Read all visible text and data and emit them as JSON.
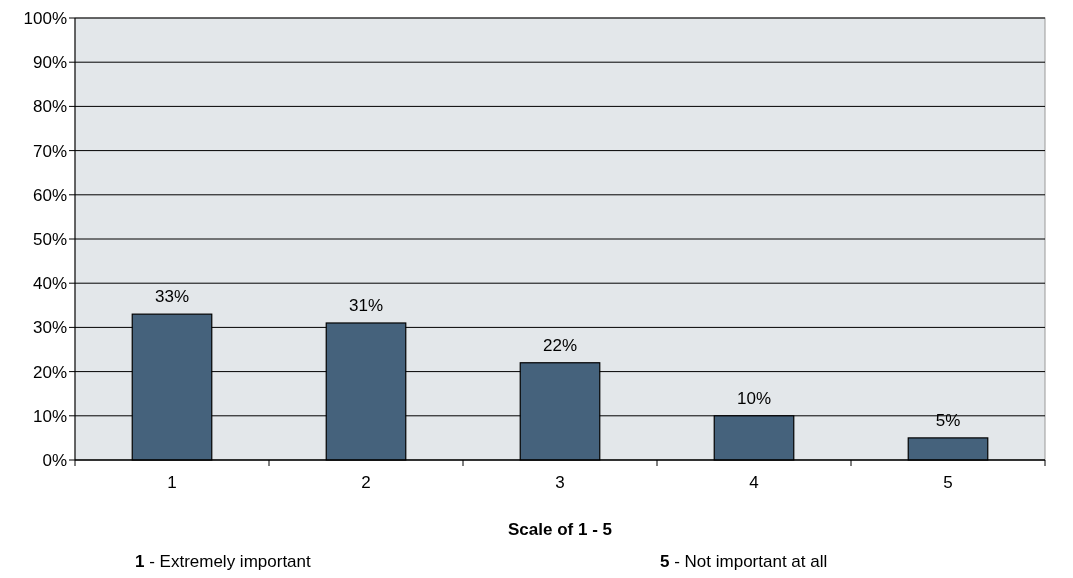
{
  "chart_data": {
    "type": "bar",
    "xlabel": "Scale of 1 - 5",
    "categories": [
      "1",
      "2",
      "3",
      "4",
      "5"
    ],
    "values": [
      33,
      31,
      22,
      10,
      5
    ],
    "value_labels": [
      "33%",
      "31%",
      "22%",
      "10%",
      "5%"
    ],
    "color": "#45627c",
    "ylim": [
      0,
      100
    ],
    "yticks": [
      {
        "value": 0,
        "label": "0%"
      },
      {
        "value": 10,
        "label": "10%"
      },
      {
        "value": 20,
        "label": "20%"
      },
      {
        "value": 30,
        "label": "30%"
      },
      {
        "value": 40,
        "label": "40%"
      },
      {
        "value": 50,
        "label": "50%"
      },
      {
        "value": 60,
        "label": "60%"
      },
      {
        "value": 70,
        "label": "70%"
      },
      {
        "value": 80,
        "label": "80%"
      },
      {
        "value": 90,
        "label": "90%"
      },
      {
        "value": 100,
        "label": "100%"
      }
    ],
    "grid": "y",
    "annotations": [
      "1 - Extremely important",
      "5 - Not important at all"
    ]
  }
}
